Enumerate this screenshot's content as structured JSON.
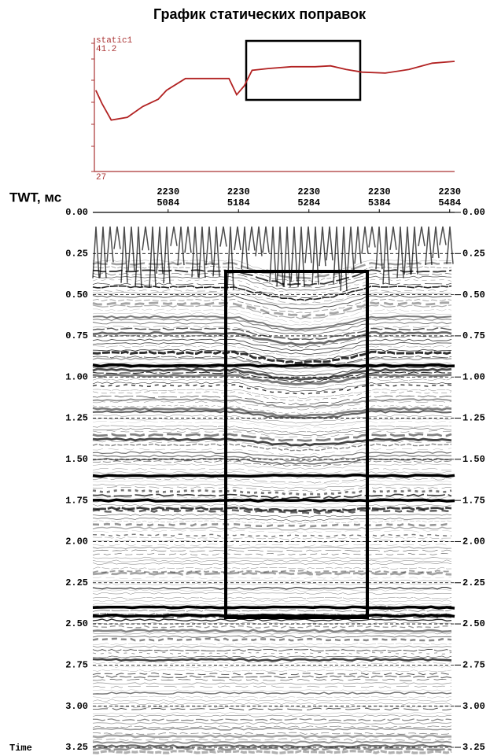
{
  "title": "График статических поправок",
  "chart_data": [
    {
      "type": "line",
      "xlim": [
        4977,
        5491
      ],
      "ylim": [
        27,
        41.2
      ],
      "yticks": [
        27,
        41.2
      ],
      "x": [
        4979,
        4988,
        5001,
        5024,
        5046,
        5068,
        5080,
        5107,
        5135,
        5169,
        5180,
        5191,
        5202,
        5225,
        5258,
        5292,
        5314,
        5336,
        5359,
        5392,
        5426,
        5459,
        5491
      ],
      "series": [
        {
          "name": "static1",
          "color": "#b22222",
          "values": [
            36.0,
            34.5,
            32.7,
            33.0,
            34.2,
            35.0,
            36.0,
            37.3,
            37.3,
            37.3,
            35.5,
            36.5,
            38.2,
            38.4,
            38.6,
            38.6,
            38.7,
            38.3,
            38.0,
            37.9,
            38.3,
            39.0,
            39.2
          ]
        }
      ]
    },
    {
      "type": "seismic",
      "y_label": "TWT, мс",
      "y_axis_name": "Time",
      "xlim": [
        4977,
        5491
      ],
      "xticks": [
        5084,
        5184,
        5284,
        5384,
        5484
      ],
      "xtick_lines": [
        "2230",
        "2230",
        "2230",
        "2230",
        "2230"
      ],
      "ylim": [
        0,
        3.25
      ],
      "yticks": [
        {
          "value": 0,
          "label": "0.00"
        },
        {
          "value": 0.25,
          "label": "0.25"
        },
        {
          "value": 0.5,
          "label": "0.50"
        },
        {
          "value": 0.75,
          "label": "0.75"
        },
        {
          "value": 1,
          "label": "1.00"
        },
        {
          "value": 1.25,
          "label": "1.25"
        },
        {
          "value": 1.5,
          "label": "1.50"
        },
        {
          "value": 1.75,
          "label": "1.75"
        },
        {
          "value": 2,
          "label": "2.00"
        },
        {
          "value": 2.25,
          "label": "2.25"
        },
        {
          "value": 2.5,
          "label": "2.50"
        },
        {
          "value": 2.75,
          "label": "2.75"
        },
        {
          "value": 3,
          "label": "3.00"
        },
        {
          "value": 3.25,
          "label": "3.25"
        }
      ],
      "grid": true
    }
  ]
}
